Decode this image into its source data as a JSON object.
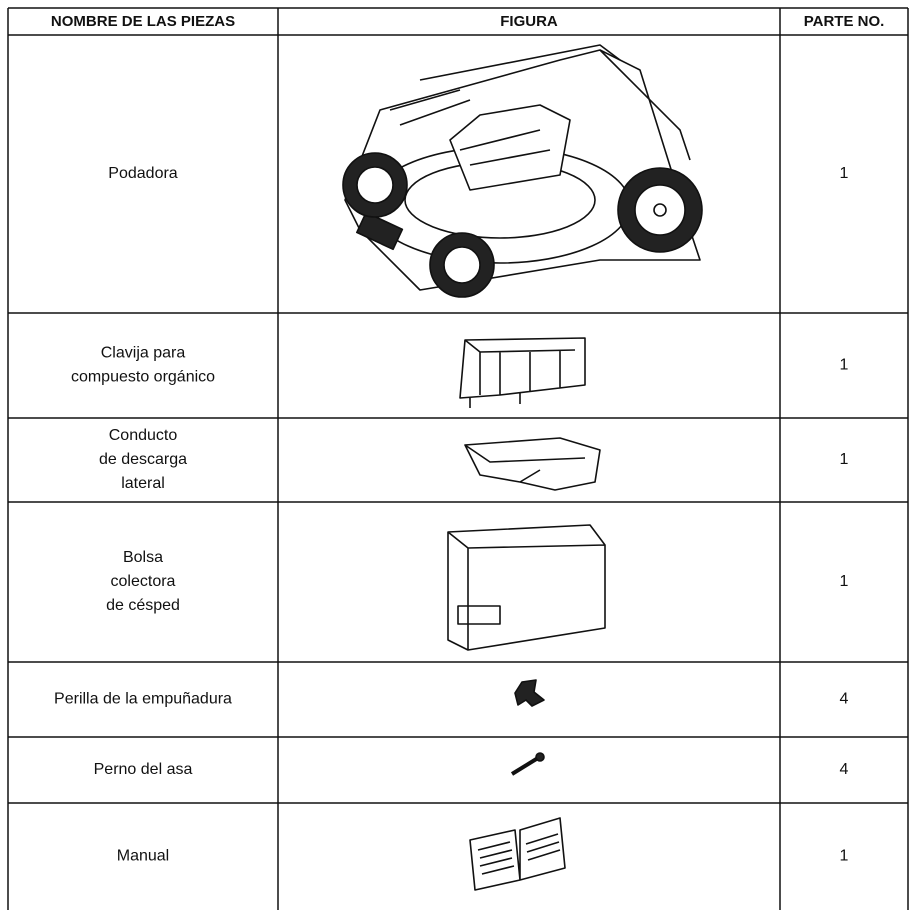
{
  "header": {
    "columns": [
      "NOMBRE DE LAS PIEZAS",
      "FIGURA",
      "PARTE NO."
    ]
  },
  "table": {
    "rows": [
      {
        "name": [
          "Podadora"
        ],
        "quantity": 1
      },
      {
        "name": [
          "Clavija para",
          "compuesto orgánico"
        ],
        "quantity": 1
      },
      {
        "name": [
          "Conducto",
          "de descarga",
          "lateral"
        ],
        "quantity": 1
      },
      {
        "name": [
          "Bolsa",
          "colectora",
          "de césped"
        ],
        "quantity": 1
      },
      {
        "name": [
          "Perilla de la empuñadura"
        ],
        "quantity": 4
      },
      {
        "name": [
          "Perno del asa"
        ],
        "quantity": 4
      },
      {
        "name": [
          "Manual"
        ],
        "quantity": 1
      }
    ]
  }
}
